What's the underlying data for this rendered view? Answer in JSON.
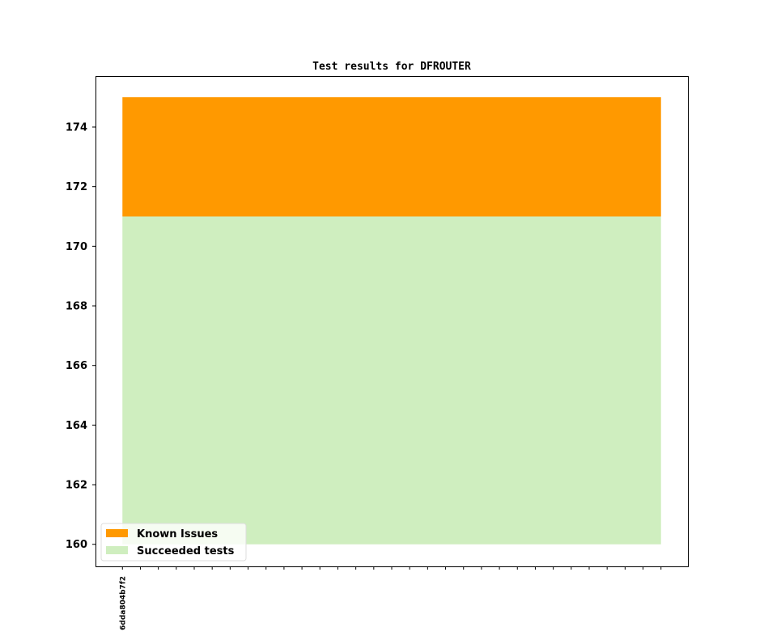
{
  "chart_data": {
    "type": "area",
    "title": "Test results for DFROUTER",
    "xlabel": "",
    "ylabel": "",
    "x": [
      0,
      1,
      2,
      3,
      4,
      5,
      6,
      7,
      8,
      9,
      10,
      11,
      12,
      13,
      14,
      15,
      16,
      17,
      18,
      19,
      20,
      21,
      22,
      23,
      24,
      25,
      26,
      27,
      28,
      29,
      30
    ],
    "x_tick_labels": [
      "6dda804b7f2"
    ],
    "ylim": [
      159.26,
      175.71
    ],
    "yticks": [
      160,
      162,
      164,
      166,
      168,
      170,
      172,
      174
    ],
    "baseline": 160,
    "series": [
      {
        "name": "Succeeded tests",
        "color": "#cfeebf",
        "values_top": 171
      },
      {
        "name": "Known Issues",
        "color": "#ff9900",
        "values_top": 175
      }
    ],
    "legend_placement": "lower-left",
    "grid": false
  }
}
